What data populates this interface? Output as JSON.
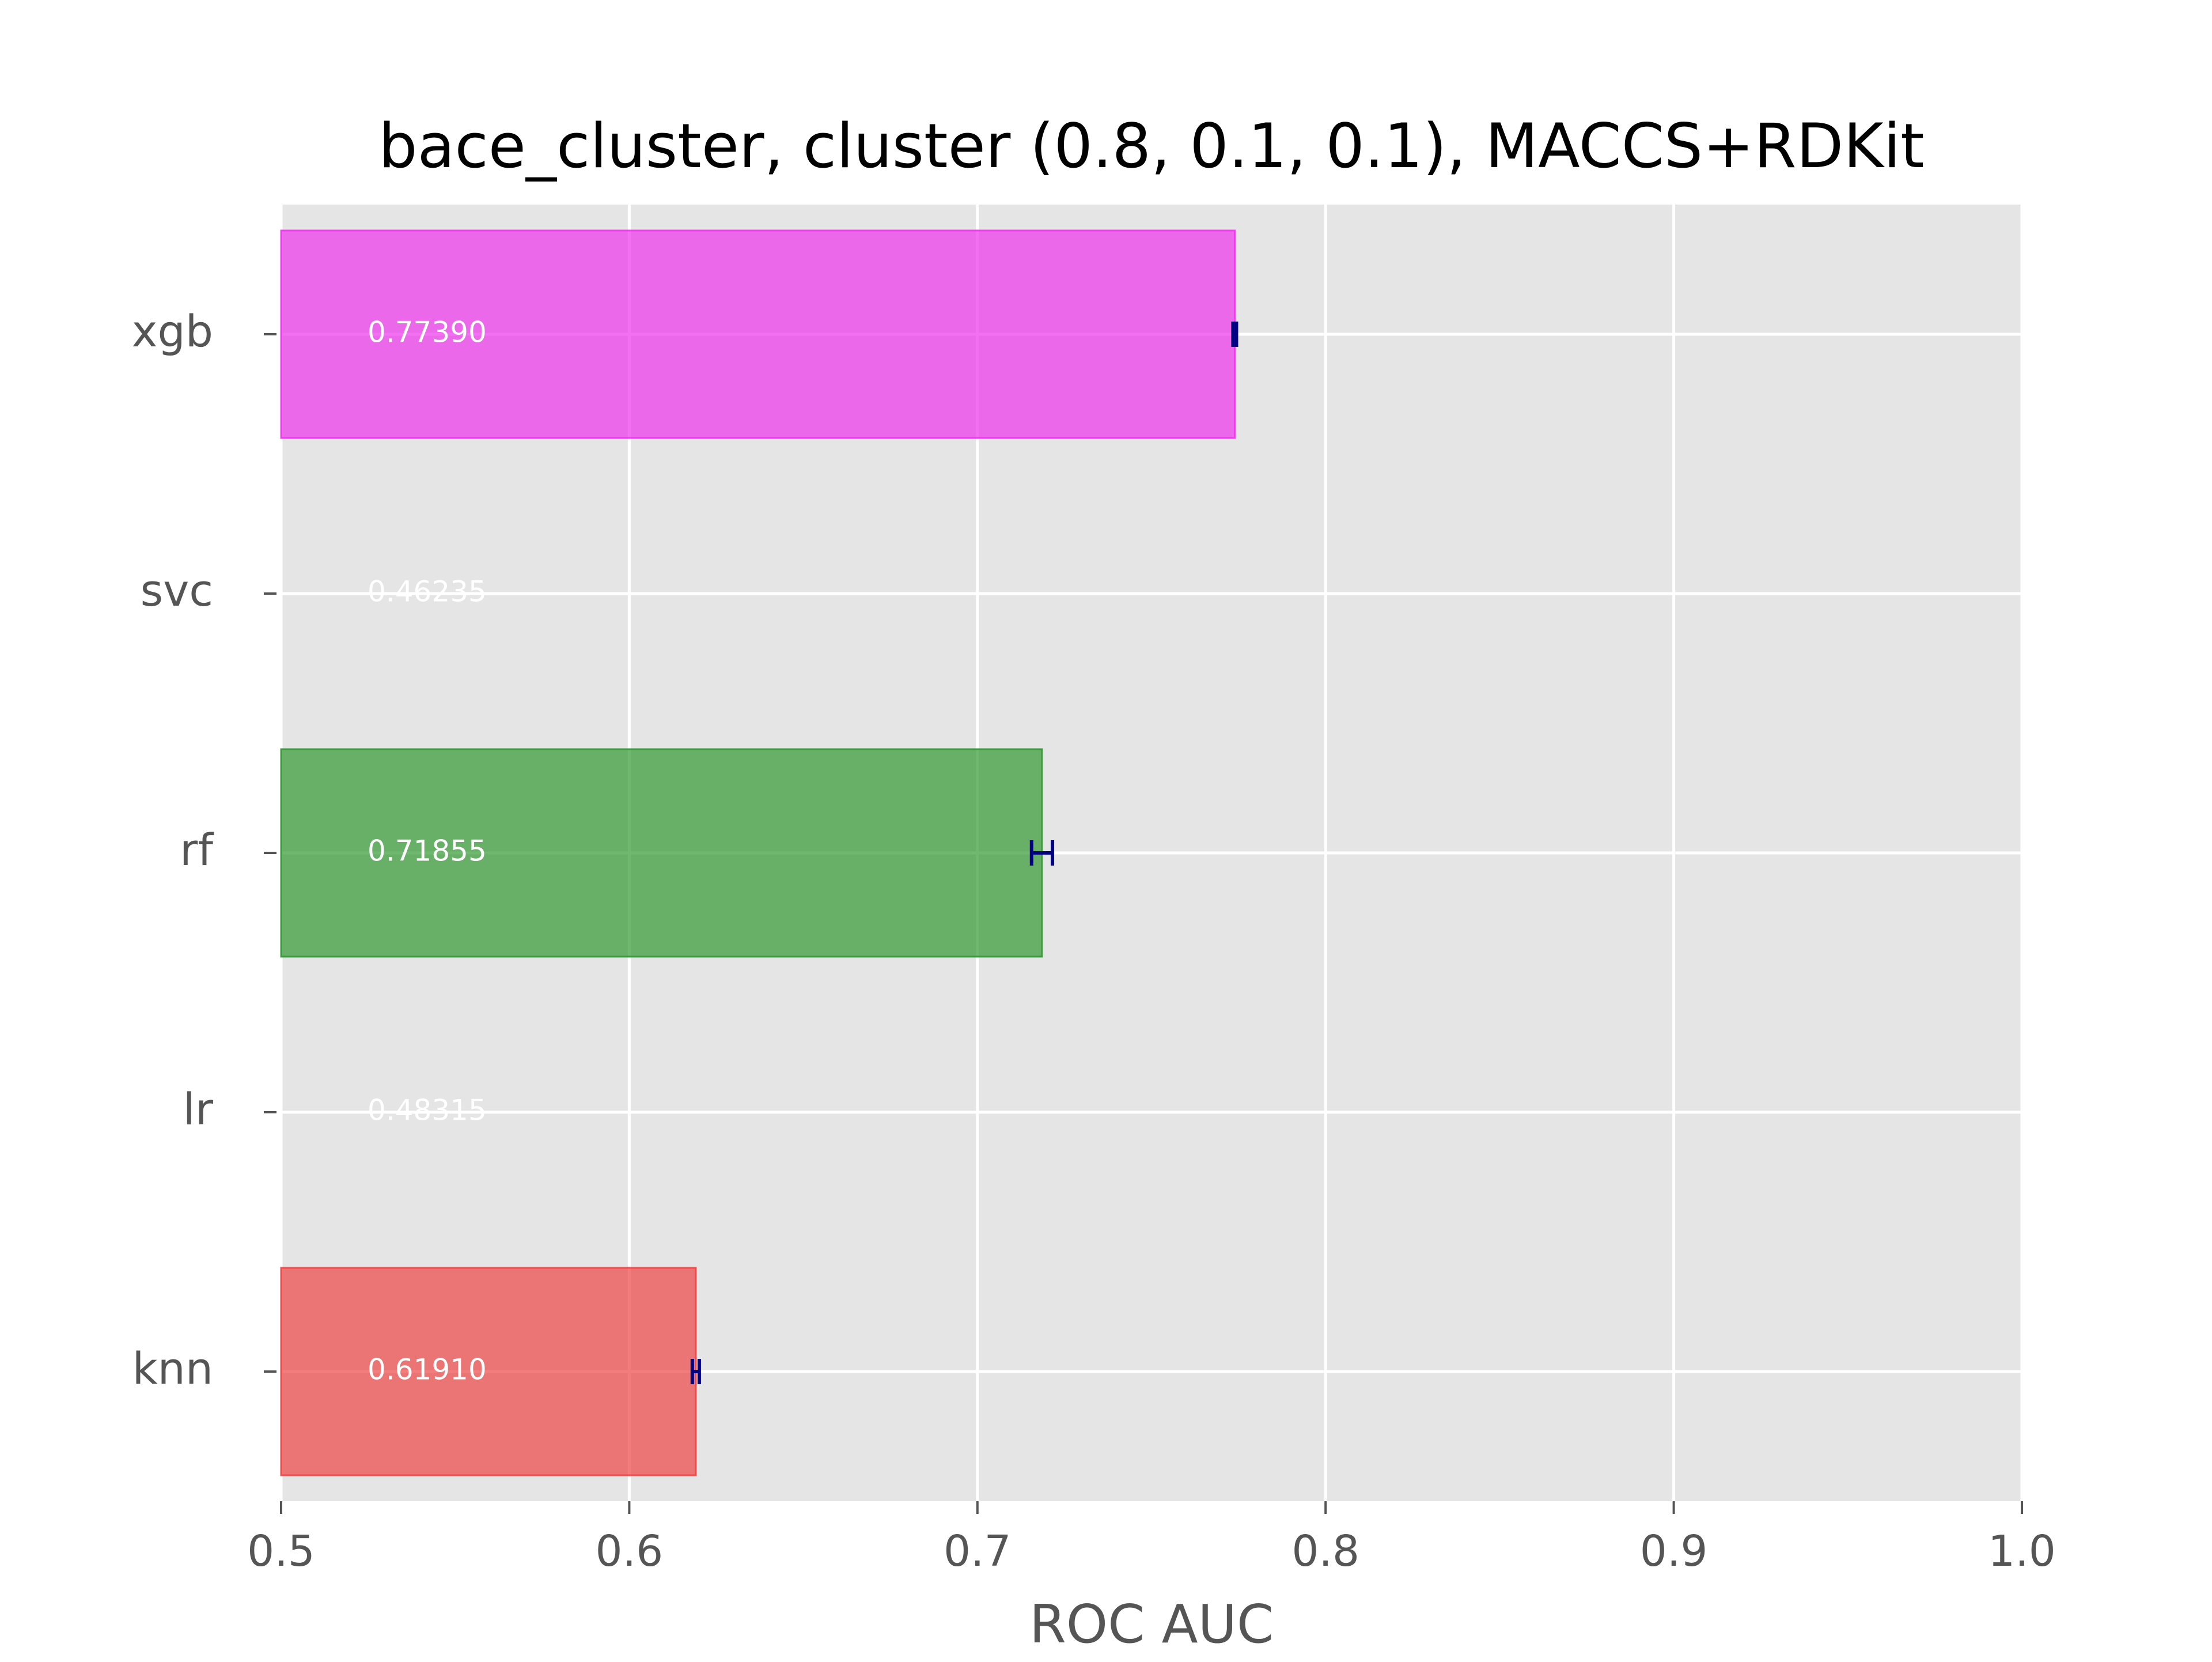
{
  "chart_data": {
    "type": "bar",
    "orientation": "horizontal",
    "title": "bace_cluster, cluster (0.8, 0.1, 0.1), MACCS+RDKit",
    "xlabel": "ROC AUC",
    "ylabel": "",
    "xlim": [
      0.5,
      1.0
    ],
    "xticks": [
      "0.5",
      "0.6",
      "0.7",
      "0.8",
      "0.9",
      "1.0"
    ],
    "grid": true,
    "categories": [
      "knn",
      "lr",
      "rf",
      "svc",
      "xgb"
    ],
    "values": [
      0.6191,
      0.48315,
      0.71855,
      0.46235,
      0.7739
    ],
    "value_labels": [
      "0.61910",
      "0.48315",
      "0.71855",
      "0.46235",
      "0.77390"
    ],
    "errors": [
      0.001,
      0.0,
      0.003,
      0.0,
      0.0005
    ],
    "colors": [
      "#ee4444",
      "#3333ee",
      "#339933",
      "#ee8800",
      "#ee33ee"
    ],
    "background": "#e5e5e5",
    "error_color": "#000080"
  }
}
